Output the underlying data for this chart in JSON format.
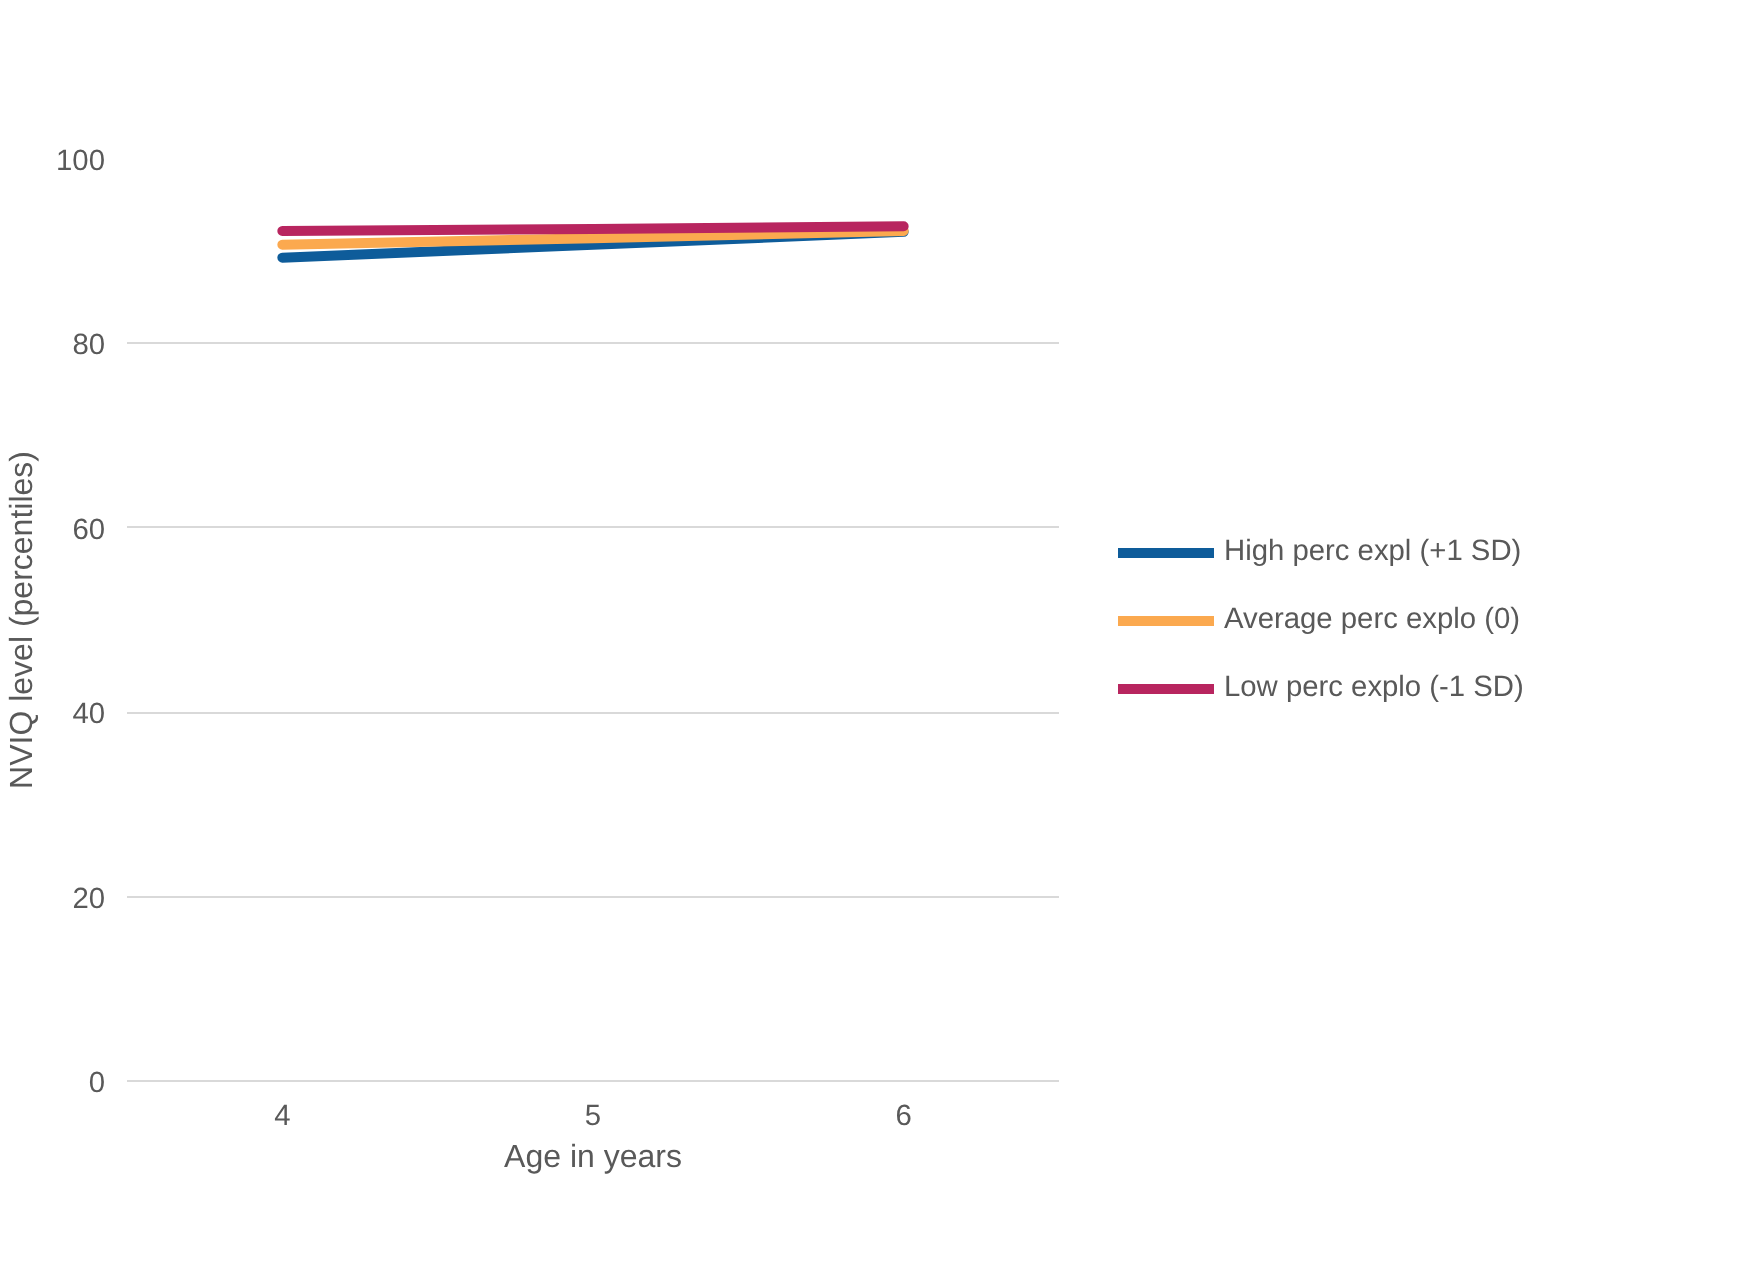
{
  "chart_data": {
    "type": "line",
    "xlabel": "Age in years",
    "ylabel": "NVIQ level (percentiles)",
    "categories": [
      "4",
      "5",
      "6"
    ],
    "series": [
      {
        "name": "High perc expl (+1 SD)",
        "color": "#0e5c9a",
        "values": [
          89.3,
          90.7,
          92.1
        ]
      },
      {
        "name": "Average perc explo (0)",
        "color": "#fba94f",
        "values": [
          90.7,
          91.4,
          92.2
        ]
      },
      {
        "name": "Low perc explo (-1 SD)",
        "color": "#b8255f",
        "values": [
          92.2,
          92.4,
          92.7
        ]
      }
    ],
    "ylim": [
      0,
      100
    ],
    "yticks": [
      0,
      20,
      40,
      60,
      80,
      100
    ],
    "grid": "y",
    "legend": "right",
    "marker": "none",
    "line_style": "solid"
  }
}
